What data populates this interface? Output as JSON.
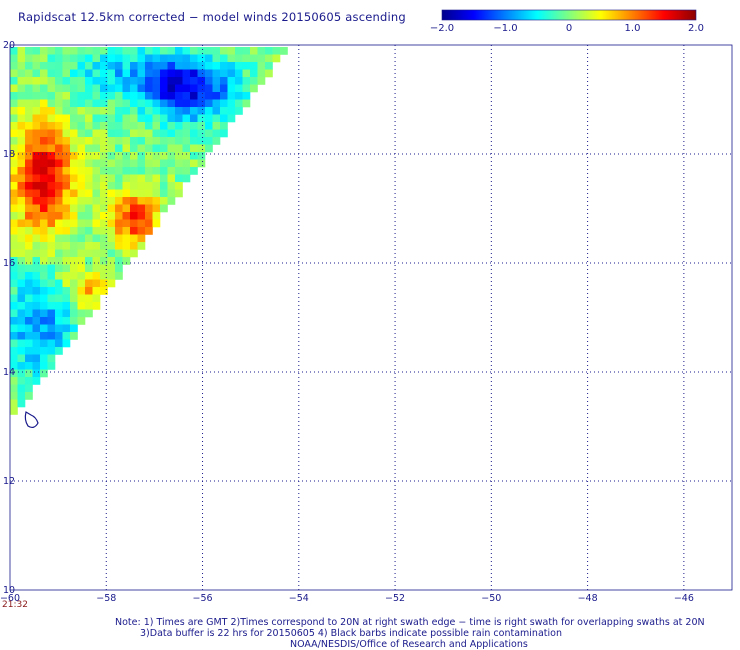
{
  "title": "Rapidscat 12.5km corrected − model winds 20150605 ascending",
  "colorbar": {
    "tick_labels": [
      "−2.0",
      "−1.0",
      "0",
      "1.0",
      "2.0"
    ],
    "tick_values": [
      -2.0,
      -1.0,
      0,
      1.0,
      2.0
    ],
    "min": -2.0,
    "max": 2.0,
    "colors": [
      "#00008b",
      "#0000ff",
      "#0080ff",
      "#00ffff",
      "#80ff80",
      "#ffff00",
      "#ff8000",
      "#ff0000",
      "#8b0000"
    ]
  },
  "map": {
    "lon_ticks": [
      -60,
      -58,
      -56,
      -54,
      -52,
      -50,
      -48,
      -46
    ],
    "lat_ticks": [
      10,
      12,
      14,
      16,
      18,
      20
    ],
    "lon_labels": [
      "−60",
      "−58",
      "−56",
      "−54",
      "−52",
      "−50",
      "−48",
      "−46"
    ],
    "lat_labels": [
      "10",
      "12",
      "14",
      "16",
      "18",
      "20"
    ],
    "lon_range": [
      -60,
      -45
    ],
    "lat_range": [
      10,
      20
    ],
    "grid": true,
    "swath_time": "21:32"
  },
  "notes": {
    "line1": "Note: 1) Times are GMT 2)Times correspond to 20N at right swath edge − time is right swath for overlapping swaths at 20N",
    "line2": "3)Data buffer is 22 hrs for 20150605 4) Black barbs indicate possible rain contamination",
    "line3": "NOAA/NESDIS/Office of Research and Applications"
  }
}
